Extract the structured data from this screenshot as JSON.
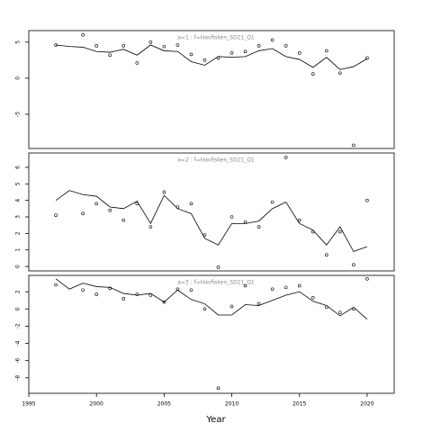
{
  "chart_data": [
    {
      "type": "line",
      "title": "a=1 : f=Havfisken_SD21_Q1",
      "x": [
        1997,
        1998,
        1999,
        2000,
        2001,
        2002,
        2003,
        2004,
        2005,
        2006,
        2007,
        2008,
        2009,
        2010,
        2011,
        2012,
        2013,
        2014,
        2015,
        2016,
        2017,
        2018,
        2019,
        2020
      ],
      "values": [
        4.6,
        4.4,
        4.3,
        3.7,
        3.6,
        4.0,
        3.2,
        4.6,
        3.8,
        3.7,
        2.3,
        1.8,
        3.0,
        2.9,
        3.0,
        3.8,
        4.1,
        3.0,
        2.6,
        1.5,
        2.9,
        1.2,
        1.6,
        2.7
      ],
      "points": {
        "x": [
          1997,
          1999,
          2000,
          2001,
          2002,
          2003,
          2004,
          2005,
          2006,
          2007,
          2008,
          2009,
          2010,
          2011,
          2012,
          2013,
          2014,
          2015,
          2016,
          2017,
          2018,
          2019,
          2020
        ],
        "values": [
          4.6,
          6.0,
          4.5,
          3.2,
          4.5,
          2.1,
          5.0,
          4.4,
          4.6,
          3.3,
          2.5,
          2.8,
          3.5,
          3.7,
          4.5,
          5.3,
          4.5,
          3.5,
          0.6,
          3.8,
          0.7,
          -9.3,
          2.8
        ]
      },
      "xlim": [
        1995,
        2022
      ],
      "ylim": [
        -9.75,
        6.6
      ],
      "yticks": [
        5,
        0,
        -5
      ]
    },
    {
      "type": "line",
      "title": "a=2 : f=Havfisken_SD21_Q1",
      "x": [
        1997,
        1998,
        1999,
        2000,
        2001,
        2002,
        2003,
        2004,
        2005,
        2006,
        2007,
        2008,
        2009,
        2010,
        2011,
        2012,
        2013,
        2014,
        2015,
        2016,
        2017,
        2018,
        2019,
        2020
      ],
      "values": [
        4.0,
        4.6,
        4.35,
        4.25,
        3.6,
        3.5,
        3.95,
        2.6,
        4.3,
        3.5,
        3.2,
        1.7,
        1.3,
        2.6,
        2.6,
        2.75,
        3.5,
        3.9,
        2.6,
        2.2,
        1.3,
        2.4,
        0.9,
        1.2
      ],
      "points": {
        "x": [
          1997,
          1999,
          2000,
          2001,
          2002,
          2003,
          2004,
          2005,
          2006,
          2007,
          2008,
          2009,
          2010,
          2011,
          2012,
          2013,
          2014,
          2015,
          2016,
          2017,
          2018,
          2019,
          2020
        ],
        "values": [
          3.1,
          3.2,
          3.8,
          3.4,
          2.8,
          3.8,
          2.4,
          4.5,
          3.6,
          3.8,
          1.9,
          -0.05,
          3.0,
          2.7,
          2.4,
          3.9,
          6.6,
          2.8,
          2.1,
          0.7,
          2.1,
          0.1,
          4.0
        ]
      },
      "xlim": [
        1995,
        2022
      ],
      "ylim": [
        -0.27,
        6.87
      ],
      "yticks": [
        0,
        1,
        2,
        3,
        4,
        5,
        6
      ]
    },
    {
      "type": "line",
      "title": "a=3 : f=Havfisken_SD21_Q1",
      "x": [
        1997,
        1998,
        1999,
        2000,
        2001,
        2002,
        2003,
        2004,
        2005,
        2006,
        2007,
        2008,
        2009,
        2010,
        2011,
        2012,
        2013,
        2014,
        2015,
        2016,
        2017,
        2018,
        2019,
        2020
      ],
      "values": [
        3.5,
        2.3,
        3.0,
        2.6,
        2.5,
        1.8,
        1.6,
        1.8,
        0.8,
        2.2,
        1.1,
        0.6,
        -0.7,
        -0.7,
        0.5,
        0.4,
        1.0,
        1.6,
        2.0,
        0.9,
        0.4,
        -0.8,
        0.2,
        -1.2
      ],
      "points": {
        "x": [
          1997,
          1999,
          2000,
          2001,
          2002,
          2003,
          2004,
          2005,
          2006,
          2007,
          2008,
          2009,
          2010,
          2011,
          2012,
          2013,
          2014,
          2015,
          2016,
          2017,
          2018,
          2019,
          2020
        ],
        "values": [
          2.8,
          2.2,
          1.7,
          2.4,
          1.2,
          1.7,
          1.6,
          0.8,
          2.3,
          2.2,
          0.0,
          -9.2,
          0.3,
          2.7,
          0.6,
          2.3,
          2.5,
          2.7,
          1.3,
          0.2,
          -0.4,
          0.0,
          3.5
        ]
      },
      "xlim": [
        1995,
        2022
      ],
      "ylim": [
        -9.8,
        3.9
      ],
      "yticks": [
        2,
        0,
        -2,
        -4,
        -6,
        -8
      ],
      "xlabel": "Year",
      "xticks": [
        1995,
        2000,
        2005,
        2010,
        2015,
        2020
      ]
    }
  ]
}
